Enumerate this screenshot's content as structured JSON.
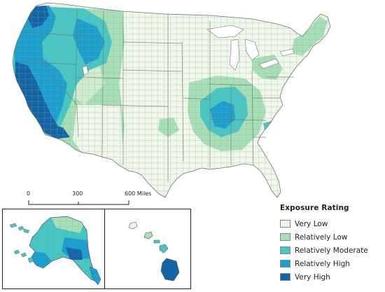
{
  "legend": {
    "title": "Exposure Rating",
    "items": [
      {
        "label": "Very Low",
        "color": "#eef7ea"
      },
      {
        "label": "Relatively Low",
        "color": "#a7dfb6"
      },
      {
        "label": "Relatively Moderate",
        "color": "#47c6c3"
      },
      {
        "label": "Relatively High",
        "color": "#1a9fcf"
      },
      {
        "label": "Very High",
        "color": "#1465a5"
      }
    ]
  },
  "scale_bar": {
    "ticks": [
      "0",
      "300",
      "600"
    ],
    "unit": "Miles"
  },
  "colors": {
    "county_border": "#9aa59a",
    "state_border": "#6e786e",
    "inset_border": "#222222",
    "lake": "#ffffff"
  }
}
